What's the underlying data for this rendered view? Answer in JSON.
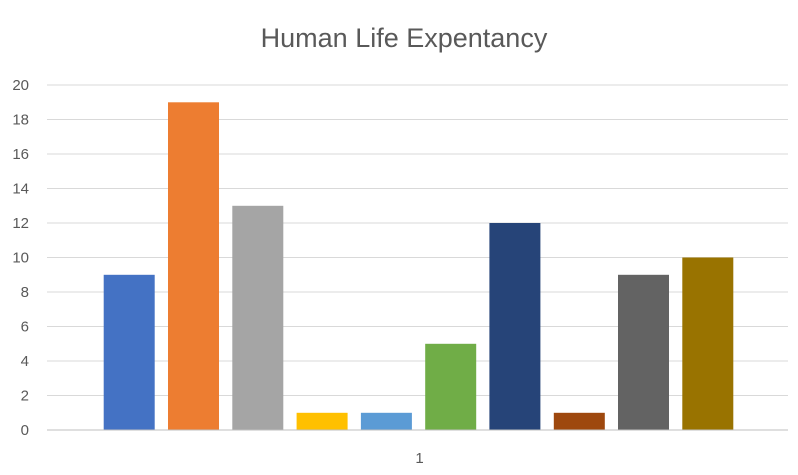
{
  "chart_data": {
    "type": "bar",
    "title": "Human Life Expentancy",
    "categories": [
      "1"
    ],
    "series": [
      {
        "values": [
          9
        ],
        "color": "#4472C4"
      },
      {
        "values": [
          19
        ],
        "color": "#ED7D31"
      },
      {
        "values": [
          13
        ],
        "color": "#A5A5A5"
      },
      {
        "values": [
          1
        ],
        "color": "#FFC000"
      },
      {
        "values": [
          1
        ],
        "color": "#5B9BD5"
      },
      {
        "values": [
          5
        ],
        "color": "#70AD47"
      },
      {
        "values": [
          12
        ],
        "color": "#264478"
      },
      {
        "values": [
          1
        ],
        "color": "#9E480E"
      },
      {
        "values": [
          9
        ],
        "color": "#636363"
      },
      {
        "values": [
          10
        ],
        "color": "#997300"
      }
    ],
    "ylim": [
      0,
      20
    ],
    "yticks": [
      "0",
      "2",
      "4",
      "6",
      "8",
      "10",
      "12",
      "14",
      "16",
      "18",
      "20"
    ],
    "grid": true,
    "legend": "none"
  }
}
